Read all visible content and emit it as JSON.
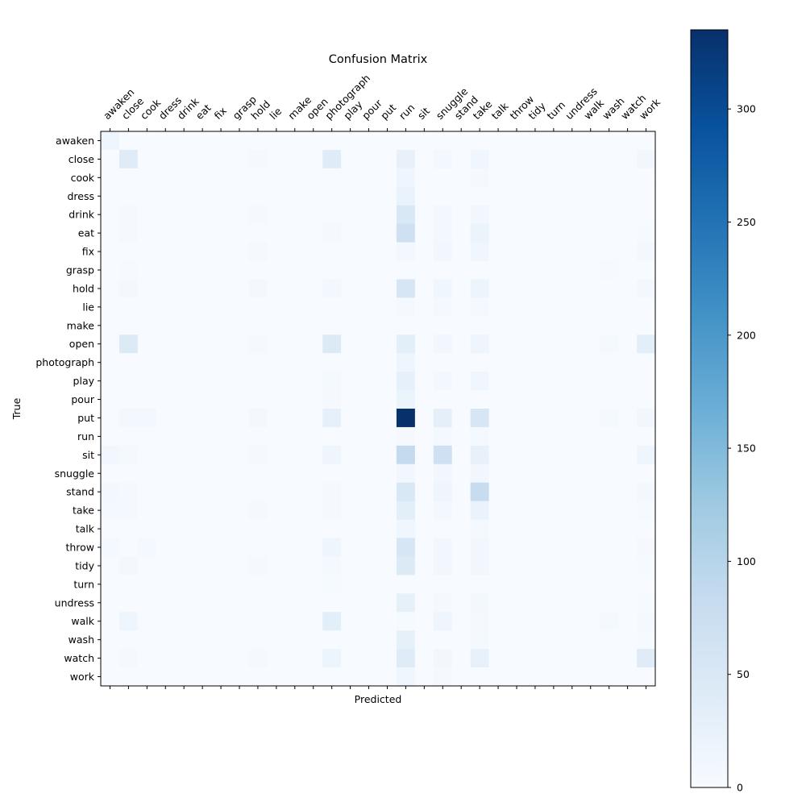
{
  "chart_data": {
    "type": "heatmap",
    "title": "Confusion Matrix",
    "xlabel": "Predicted",
    "ylabel": "True",
    "labels": [
      "awaken",
      "close",
      "cook",
      "dress",
      "drink",
      "eat",
      "fix",
      "grasp",
      "hold",
      "lie",
      "make",
      "open",
      "photograph",
      "play",
      "pour",
      "put",
      "run",
      "sit",
      "snuggle",
      "stand",
      "take",
      "talk",
      "throw",
      "tidy",
      "turn",
      "undress",
      "walk",
      "wash",
      "watch",
      "work"
    ],
    "colorbar": {
      "min": 0,
      "max": 335,
      "ticks": [
        0,
        50,
        100,
        150,
        200,
        250,
        300
      ]
    },
    "colormap": {
      "low": "#f7fbff",
      "high": "#08306b"
    },
    "values": [
      [
        15,
        0,
        0,
        0,
        0,
        0,
        0,
        0,
        0,
        0,
        0,
        0,
        0,
        0,
        0,
        0,
        0,
        0,
        0,
        0,
        0,
        0,
        0,
        0,
        0,
        0,
        0,
        0,
        0,
        0
      ],
      [
        0,
        40,
        0,
        0,
        0,
        0,
        0,
        0,
        4,
        0,
        0,
        0,
        40,
        0,
        0,
        0,
        25,
        0,
        8,
        0,
        12,
        0,
        0,
        0,
        0,
        0,
        0,
        0,
        0,
        10
      ],
      [
        0,
        0,
        0,
        0,
        0,
        0,
        0,
        0,
        0,
        0,
        0,
        0,
        0,
        0,
        0,
        0,
        15,
        0,
        0,
        0,
        4,
        0,
        0,
        0,
        0,
        0,
        0,
        0,
        0,
        0
      ],
      [
        0,
        0,
        0,
        0,
        0,
        0,
        0,
        0,
        0,
        0,
        0,
        0,
        0,
        0,
        0,
        0,
        22,
        0,
        0,
        0,
        0,
        0,
        0,
        0,
        0,
        0,
        0,
        0,
        0,
        0
      ],
      [
        0,
        4,
        0,
        0,
        0,
        0,
        0,
        0,
        6,
        0,
        0,
        0,
        0,
        0,
        0,
        0,
        50,
        0,
        8,
        0,
        10,
        0,
        0,
        0,
        0,
        0,
        0,
        0,
        0,
        0
      ],
      [
        0,
        5,
        0,
        0,
        0,
        0,
        0,
        0,
        0,
        0,
        0,
        0,
        4,
        0,
        0,
        0,
        70,
        0,
        8,
        0,
        20,
        0,
        0,
        0,
        0,
        0,
        0,
        0,
        0,
        3
      ],
      [
        0,
        0,
        0,
        0,
        0,
        0,
        0,
        0,
        4,
        0,
        0,
        0,
        0,
        0,
        0,
        0,
        8,
        0,
        10,
        0,
        12,
        0,
        0,
        0,
        0,
        0,
        0,
        0,
        0,
        8
      ],
      [
        0,
        3,
        0,
        0,
        0,
        0,
        0,
        0,
        0,
        0,
        0,
        0,
        0,
        0,
        0,
        0,
        0,
        0,
        0,
        0,
        0,
        0,
        0,
        0,
        0,
        0,
        0,
        2,
        0,
        0
      ],
      [
        0,
        8,
        0,
        0,
        0,
        0,
        0,
        0,
        8,
        0,
        0,
        0,
        8,
        0,
        0,
        0,
        55,
        0,
        12,
        0,
        18,
        0,
        0,
        0,
        0,
        0,
        0,
        0,
        0,
        8
      ],
      [
        0,
        0,
        0,
        0,
        0,
        0,
        0,
        0,
        0,
        0,
        0,
        0,
        0,
        0,
        0,
        0,
        6,
        0,
        6,
        0,
        6,
        0,
        0,
        0,
        0,
        0,
        0,
        0,
        0,
        0
      ],
      [
        0,
        0,
        0,
        0,
        0,
        0,
        0,
        0,
        0,
        0,
        0,
        0,
        0,
        0,
        0,
        0,
        0,
        0,
        0,
        0,
        0,
        0,
        0,
        0,
        0,
        0,
        0,
        0,
        0,
        0
      ],
      [
        0,
        45,
        0,
        0,
        0,
        0,
        0,
        0,
        5,
        0,
        0,
        0,
        45,
        0,
        0,
        0,
        35,
        0,
        10,
        0,
        15,
        0,
        0,
        0,
        0,
        0,
        0,
        5,
        0,
        35
      ],
      [
        0,
        0,
        0,
        0,
        0,
        0,
        0,
        0,
        0,
        0,
        0,
        0,
        0,
        0,
        0,
        0,
        15,
        0,
        0,
        0,
        0,
        0,
        0,
        0,
        0,
        0,
        0,
        0,
        0,
        0
      ],
      [
        0,
        0,
        0,
        0,
        0,
        0,
        0,
        0,
        0,
        0,
        0,
        0,
        6,
        0,
        0,
        0,
        28,
        0,
        8,
        0,
        12,
        0,
        0,
        0,
        0,
        0,
        0,
        0,
        0,
        0
      ],
      [
        0,
        0,
        0,
        0,
        0,
        0,
        0,
        0,
        0,
        0,
        0,
        0,
        4,
        0,
        0,
        0,
        20,
        0,
        0,
        0,
        0,
        0,
        0,
        0,
        0,
        0,
        0,
        0,
        0,
        0
      ],
      [
        0,
        8,
        8,
        0,
        0,
        0,
        0,
        0,
        8,
        0,
        0,
        0,
        28,
        0,
        0,
        0,
        335,
        0,
        32,
        0,
        55,
        0,
        0,
        0,
        0,
        0,
        0,
        5,
        0,
        10
      ],
      [
        0,
        0,
        0,
        0,
        0,
        0,
        0,
        0,
        0,
        0,
        0,
        0,
        0,
        0,
        0,
        0,
        4,
        0,
        6,
        0,
        6,
        0,
        0,
        0,
        0,
        0,
        0,
        0,
        0,
        0
      ],
      [
        10,
        5,
        0,
        0,
        0,
        0,
        0,
        0,
        5,
        0,
        0,
        0,
        15,
        0,
        0,
        0,
        85,
        0,
        70,
        0,
        25,
        0,
        0,
        0,
        0,
        0,
        0,
        0,
        0,
        15
      ],
      [
        0,
        0,
        0,
        0,
        0,
        0,
        0,
        0,
        0,
        0,
        0,
        0,
        0,
        0,
        0,
        0,
        10,
        0,
        10,
        0,
        10,
        0,
        0,
        0,
        0,
        0,
        0,
        0,
        0,
        0
      ],
      [
        8,
        6,
        0,
        0,
        0,
        0,
        0,
        0,
        0,
        0,
        0,
        0,
        4,
        0,
        0,
        0,
        50,
        0,
        15,
        0,
        80,
        0,
        0,
        0,
        0,
        0,
        0,
        0,
        0,
        8
      ],
      [
        6,
        6,
        0,
        0,
        0,
        0,
        0,
        0,
        6,
        0,
        0,
        0,
        4,
        0,
        0,
        0,
        35,
        0,
        8,
        0,
        22,
        0,
        0,
        0,
        0,
        0,
        0,
        0,
        0,
        3
      ],
      [
        0,
        0,
        0,
        0,
        0,
        0,
        0,
        0,
        0,
        0,
        0,
        0,
        0,
        0,
        0,
        0,
        12,
        0,
        0,
        0,
        6,
        0,
        0,
        0,
        0,
        0,
        0,
        0,
        0,
        0
      ],
      [
        6,
        0,
        6,
        0,
        0,
        0,
        0,
        0,
        0,
        0,
        0,
        0,
        15,
        0,
        0,
        0,
        55,
        0,
        10,
        0,
        10,
        0,
        0,
        0,
        0,
        0,
        0,
        0,
        0,
        4
      ],
      [
        0,
        8,
        0,
        0,
        0,
        0,
        0,
        0,
        6,
        0,
        0,
        0,
        6,
        0,
        0,
        0,
        45,
        0,
        10,
        0,
        10,
        0,
        0,
        0,
        0,
        0,
        0,
        0,
        0,
        3
      ],
      [
        0,
        0,
        0,
        0,
        0,
        0,
        0,
        0,
        0,
        0,
        0,
        0,
        3,
        0,
        0,
        0,
        0,
        0,
        0,
        0,
        0,
        0,
        0,
        0,
        0,
        0,
        0,
        0,
        0,
        0
      ],
      [
        0,
        0,
        0,
        0,
        0,
        0,
        0,
        0,
        0,
        0,
        0,
        0,
        0,
        0,
        0,
        0,
        30,
        0,
        4,
        0,
        8,
        0,
        0,
        0,
        0,
        0,
        0,
        0,
        0,
        3
      ],
      [
        0,
        15,
        0,
        0,
        0,
        0,
        0,
        0,
        0,
        0,
        0,
        0,
        35,
        0,
        0,
        0,
        3,
        0,
        15,
        0,
        4,
        0,
        0,
        0,
        0,
        0,
        0,
        6,
        0,
        6
      ],
      [
        0,
        0,
        0,
        0,
        0,
        0,
        0,
        0,
        0,
        0,
        0,
        0,
        0,
        0,
        0,
        0,
        30,
        0,
        0,
        0,
        6,
        0,
        0,
        0,
        0,
        0,
        0,
        0,
        0,
        3
      ],
      [
        0,
        6,
        0,
        0,
        0,
        0,
        0,
        0,
        6,
        0,
        0,
        0,
        18,
        0,
        0,
        0,
        40,
        0,
        10,
        0,
        25,
        0,
        0,
        0,
        0,
        0,
        0,
        0,
        0,
        40
      ],
      [
        0,
        0,
        0,
        0,
        0,
        0,
        0,
        0,
        0,
        0,
        0,
        0,
        0,
        0,
        0,
        0,
        12,
        0,
        4,
        0,
        0,
        0,
        0,
        0,
        0,
        0,
        0,
        0,
        0,
        0
      ]
    ]
  }
}
